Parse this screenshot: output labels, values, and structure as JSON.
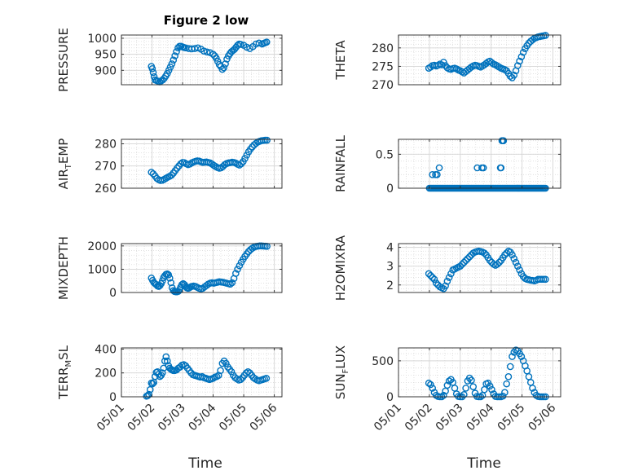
{
  "figure": {
    "title": "Figure 2 low",
    "marker_color": "#0072BD"
  },
  "chart_data": [
    {
      "type": "scatter",
      "id": "pressure",
      "ylabel": "PRESSURE",
      "ylim": [
        855,
        1010
      ],
      "yticks": [
        900,
        950,
        1000
      ],
      "xlim": [
        0,
        5.25
      ],
      "x_tick_labels_shown": false,
      "grid": true,
      "x": [
        0.98,
        1.01,
        1.04,
        1.07,
        1.1,
        1.15,
        1.2,
        1.25,
        1.3,
        1.35,
        1.4,
        1.45,
        1.5,
        1.55,
        1.6,
        1.65,
        1.7,
        1.75,
        1.8,
        1.85,
        1.9,
        1.95,
        2.0,
        2.05,
        2.1,
        2.2,
        2.3,
        2.4,
        2.5,
        2.6,
        2.7,
        2.8,
        2.9,
        3.0,
        3.05,
        3.1,
        3.15,
        3.2,
        3.25,
        3.3,
        3.35,
        3.4,
        3.45,
        3.5,
        3.55,
        3.6,
        3.65,
        3.7,
        3.75,
        3.8,
        3.85,
        3.9,
        4.0,
        4.1,
        4.2,
        4.3,
        4.4,
        4.5,
        4.6,
        4.65,
        4.7,
        4.75
      ],
      "y": [
        912,
        905,
        893,
        880,
        870,
        868,
        866,
        864,
        867,
        870,
        875,
        882,
        890,
        900,
        910,
        920,
        932,
        945,
        958,
        970,
        975,
        975,
        973,
        971,
        970,
        968,
        967,
        968,
        970,
        966,
        960,
        957,
        955,
        950,
        945,
        938,
        928,
        918,
        912,
        903,
        908,
        920,
        935,
        945,
        952,
        958,
        962,
        966,
        972,
        978,
        982,
        981,
        978,
        972,
        968,
        974,
        982,
        985,
        982,
        984,
        986,
        988
      ]
    },
    {
      "type": "scatter",
      "id": "theta",
      "ylabel": "THETA",
      "ylim": [
        270,
        283.5
      ],
      "yticks": [
        270,
        275,
        280
      ],
      "xlim": [
        0,
        5.25
      ],
      "x_tick_labels_shown": false,
      "grid": true,
      "x": [
        0.98,
        1.04,
        1.1,
        1.16,
        1.22,
        1.28,
        1.34,
        1.4,
        1.46,
        1.52,
        1.58,
        1.64,
        1.7,
        1.76,
        1.82,
        1.88,
        1.94,
        2.0,
        2.06,
        2.12,
        2.18,
        2.24,
        2.3,
        2.36,
        2.42,
        2.48,
        2.54,
        2.6,
        2.66,
        2.72,
        2.78,
        2.84,
        2.9,
        2.96,
        3.02,
        3.08,
        3.14,
        3.2,
        3.26,
        3.32,
        3.38,
        3.44,
        3.5,
        3.56,
        3.62,
        3.68,
        3.74,
        3.8,
        3.86,
        3.92,
        3.98,
        4.04,
        4.1,
        4.16,
        4.22,
        4.28,
        4.34,
        4.4,
        4.46,
        4.52,
        4.58,
        4.64,
        4.7,
        4.76
      ],
      "y": [
        274.5,
        274.8,
        275.2,
        275.3,
        275.1,
        275.3,
        275.6,
        275.4,
        276.1,
        275.2,
        274.6,
        274.3,
        274.2,
        274.4,
        274.5,
        274.3,
        274.0,
        273.8,
        273.5,
        273.2,
        273.6,
        274.0,
        274.4,
        274.8,
        275.1,
        275.3,
        275.2,
        275.0,
        274.8,
        275.1,
        275.4,
        275.8,
        276.2,
        276.4,
        276.0,
        275.6,
        275.4,
        275.1,
        274.8,
        274.5,
        274.3,
        274.1,
        273.8,
        273.1,
        272.3,
        271.9,
        272.6,
        273.8,
        275.2,
        276.4,
        277.6,
        278.8,
        279.8,
        280.6,
        281.3,
        281.8,
        282.2,
        282.6,
        282.8,
        283.0,
        283.1,
        283.2,
        283.3,
        283.4
      ]
    },
    {
      "type": "scatter",
      "id": "air_temp",
      "ylabel": "AIR",
      "ylabel_sub": "T",
      "ylabel_post": "EMP",
      "ylim": [
        260,
        282
      ],
      "yticks": [
        260,
        270,
        280
      ],
      "xlim": [
        0,
        5.25
      ],
      "x_tick_labels_shown": false,
      "grid": true,
      "x": [
        0.98,
        1.04,
        1.1,
        1.16,
        1.22,
        1.28,
        1.34,
        1.4,
        1.46,
        1.52,
        1.58,
        1.64,
        1.7,
        1.76,
        1.82,
        1.88,
        1.94,
        2.0,
        2.06,
        2.12,
        2.18,
        2.24,
        2.3,
        2.36,
        2.42,
        2.48,
        2.54,
        2.6,
        2.66,
        2.72,
        2.78,
        2.84,
        2.9,
        2.96,
        3.02,
        3.08,
        3.14,
        3.2,
        3.26,
        3.32,
        3.38,
        3.44,
        3.5,
        3.56,
        3.62,
        3.68,
        3.74,
        3.8,
        3.86,
        3.92,
        3.98,
        4.04,
        4.1,
        4.16,
        4.22,
        4.28,
        4.34,
        4.4,
        4.46,
        4.52,
        4.58,
        4.64,
        4.7,
        4.76
      ],
      "y": [
        267.2,
        266.5,
        265.5,
        264.4,
        263.8,
        263.5,
        263.6,
        264.0,
        264.5,
        265.0,
        265.4,
        265.9,
        266.8,
        267.9,
        269.0,
        270.0,
        271.0,
        271.6,
        271.5,
        271.0,
        270.6,
        270.9,
        271.4,
        271.8,
        272.1,
        272.3,
        272.2,
        271.9,
        271.6,
        271.7,
        271.8,
        271.6,
        271.4,
        270.9,
        270.3,
        269.8,
        269.3,
        269.0,
        269.2,
        269.8,
        270.6,
        271.1,
        271.4,
        271.5,
        271.7,
        271.6,
        271.3,
        270.8,
        270.4,
        271.0,
        272.0,
        273.4,
        274.9,
        276.4,
        277.6,
        278.6,
        279.5,
        280.2,
        280.8,
        281.1,
        281.4,
        281.5,
        281.6,
        281.6
      ]
    },
    {
      "type": "scatter",
      "id": "rainfall",
      "ylabel": "RAINFALL",
      "ylim": [
        0,
        0.72
      ],
      "yticks": [
        0,
        0.5
      ],
      "xlim": [
        0,
        5.25
      ],
      "x_tick_labels_shown": false,
      "grid": true,
      "x": [
        1.0,
        1.04,
        1.08,
        1.12,
        1.16,
        1.2,
        1.24,
        1.28,
        1.32,
        1.36,
        1.4,
        1.44,
        1.48,
        1.52,
        1.56,
        1.6,
        1.64,
        1.68,
        1.72,
        1.76,
        1.8,
        1.84,
        1.88,
        1.92,
        1.96,
        2.0,
        2.04,
        2.08,
        2.12,
        2.16,
        2.2,
        2.24,
        2.28,
        2.32,
        2.36,
        2.4,
        2.44,
        2.48,
        2.52,
        2.56,
        2.6,
        2.64,
        2.68,
        2.72,
        2.76,
        2.8,
        2.84,
        2.88,
        2.92,
        2.96,
        3.0,
        3.04,
        3.08,
        3.12,
        3.16,
        3.2,
        3.24,
        3.28,
        3.32,
        3.36,
        3.4,
        3.44,
        3.48,
        3.52,
        3.56,
        3.6,
        3.64,
        3.68,
        3.72,
        3.76,
        3.8,
        3.84,
        3.88,
        3.92,
        3.96,
        4.0,
        4.04,
        4.08,
        4.12,
        4.16,
        4.2,
        4.24,
        4.28,
        4.32,
        4.36,
        4.4,
        4.44,
        4.48,
        4.52,
        4.56,
        4.6,
        4.64,
        4.68,
        4.72,
        4.76,
        1.1,
        1.2,
        1.25,
        1.32,
        2.55,
        2.7,
        2.75,
        3.3,
        3.32,
        3.35,
        3.38,
        3.4
      ],
      "y": [
        0,
        0,
        0,
        0,
        0,
        0,
        0,
        0,
        0,
        0,
        0,
        0,
        0,
        0,
        0,
        0,
        0,
        0,
        0,
        0,
        0,
        0,
        0,
        0,
        0,
        0,
        0,
        0,
        0,
        0,
        0,
        0,
        0,
        0,
        0,
        0,
        0,
        0,
        0,
        0,
        0,
        0,
        0,
        0,
        0,
        0,
        0,
        0,
        0,
        0,
        0,
        0,
        0,
        0,
        0,
        0,
        0,
        0,
        0,
        0,
        0,
        0,
        0,
        0,
        0,
        0,
        0,
        0,
        0,
        0,
        0,
        0,
        0,
        0,
        0,
        0,
        0,
        0,
        0,
        0,
        0,
        0,
        0,
        0,
        0,
        0,
        0,
        0,
        0,
        0,
        0,
        0,
        0,
        0,
        0,
        0.2,
        0.2,
        0.2,
        0.3,
        0.3,
        0.3,
        0.3,
        0.3,
        0.3,
        0.7,
        0.7,
        0.7
      ]
    },
    {
      "type": "scatter",
      "id": "mixdepth",
      "ylabel": "MIXDEPTH",
      "ylim": [
        0,
        2100
      ],
      "yticks": [
        0,
        1000,
        2000
      ],
      "xlim": [
        0,
        5.25
      ],
      "x_tick_labels_shown": false,
      "grid": true,
      "x": [
        0.98,
        1.02,
        1.06,
        1.1,
        1.14,
        1.18,
        1.22,
        1.26,
        1.3,
        1.34,
        1.38,
        1.42,
        1.46,
        1.5,
        1.54,
        1.58,
        1.62,
        1.66,
        1.7,
        1.74,
        1.78,
        1.82,
        1.86,
        1.9,
        1.94,
        1.98,
        2.02,
        2.06,
        2.1,
        2.14,
        2.18,
        2.22,
        2.26,
        2.3,
        2.36,
        2.42,
        2.48,
        2.54,
        2.6,
        2.66,
        2.72,
        2.78,
        2.84,
        2.9,
        2.96,
        3.02,
        3.08,
        3.14,
        3.2,
        3.26,
        3.32,
        3.38,
        3.44,
        3.5,
        3.56,
        3.62,
        3.68,
        3.74,
        3.8,
        3.86,
        3.92,
        3.98,
        4.04,
        4.1,
        4.16,
        4.22,
        4.28,
        4.34,
        4.4,
        4.46,
        4.52,
        4.58,
        4.64,
        4.7,
        4.76
      ],
      "y": [
        620,
        520,
        430,
        380,
        340,
        280,
        260,
        300,
        380,
        500,
        640,
        720,
        780,
        800,
        760,
        620,
        420,
        200,
        80,
        40,
        30,
        30,
        50,
        120,
        240,
        340,
        380,
        340,
        260,
        200,
        180,
        200,
        240,
        260,
        280,
        260,
        220,
        180,
        160,
        180,
        240,
        300,
        360,
        400,
        420,
        400,
        420,
        440,
        460,
        450,
        440,
        420,
        400,
        380,
        360,
        420,
        600,
        820,
        1000,
        1150,
        1300,
        1430,
        1550,
        1660,
        1760,
        1840,
        1900,
        1950,
        1980,
        1990,
        2000,
        2000,
        1995,
        1990,
        1985
      ]
    },
    {
      "type": "scatter",
      "id": "h2omixra",
      "ylabel": "H2OMIXRA",
      "ylim": [
        1.6,
        4.2
      ],
      "yticks": [
        2,
        3,
        4
      ],
      "xlim": [
        0,
        5.25
      ],
      "x_tick_labels_shown": false,
      "grid": true,
      "x": [
        0.98,
        1.04,
        1.1,
        1.16,
        1.22,
        1.28,
        1.34,
        1.4,
        1.46,
        1.52,
        1.58,
        1.64,
        1.7,
        1.76,
        1.82,
        1.88,
        1.94,
        2.0,
        2.06,
        2.12,
        2.18,
        2.24,
        2.3,
        2.36,
        2.42,
        2.48,
        2.54,
        2.6,
        2.66,
        2.72,
        2.78,
        2.84,
        2.9,
        2.96,
        3.02,
        3.08,
        3.14,
        3.2,
        3.26,
        3.32,
        3.38,
        3.44,
        3.5,
        3.56,
        3.62,
        3.68,
        3.74,
        3.8,
        3.86,
        3.92,
        3.98,
        4.04,
        4.1,
        4.16,
        4.22,
        4.28,
        4.34,
        4.4,
        4.46,
        4.52,
        4.58,
        4.64,
        4.7,
        4.76
      ],
      "y": [
        2.6,
        2.5,
        2.4,
        2.3,
        2.1,
        2.0,
        1.9,
        1.85,
        1.8,
        1.95,
        2.2,
        2.4,
        2.6,
        2.8,
        2.85,
        2.9,
        2.95,
        3.0,
        3.1,
        3.2,
        3.3,
        3.4,
        3.5,
        3.6,
        3.7,
        3.75,
        3.78,
        3.8,
        3.78,
        3.75,
        3.7,
        3.6,
        3.45,
        3.3,
        3.2,
        3.1,
        3.05,
        3.1,
        3.2,
        3.3,
        3.45,
        3.6,
        3.7,
        3.8,
        3.75,
        3.6,
        3.4,
        3.2,
        3.0,
        2.8,
        2.6,
        2.45,
        2.35,
        2.3,
        2.28,
        2.25,
        2.24,
        2.22,
        2.25,
        2.3,
        2.3,
        2.3,
        2.3,
        2.3
      ]
    },
    {
      "type": "scatter",
      "id": "terr_msl",
      "ylabel": "TERR",
      "ylabel_sub": "M",
      "ylabel_post": "SL",
      "ylim": [
        0,
        410
      ],
      "yticks": [
        0,
        200,
        400
      ],
      "xlim": [
        0,
        5.25
      ],
      "x_tick_labels_shown": true,
      "grid": true,
      "x": [
        0.82,
        0.86,
        0.9,
        0.94,
        0.98,
        1.02,
        1.06,
        1.1,
        1.14,
        1.18,
        1.22,
        1.26,
        1.3,
        1.34,
        1.38,
        1.42,
        1.46,
        1.5,
        1.54,
        1.58,
        1.62,
        1.66,
        1.7,
        1.74,
        1.8,
        1.86,
        1.92,
        1.98,
        2.04,
        2.1,
        2.16,
        2.22,
        2.28,
        2.34,
        2.4,
        2.46,
        2.52,
        2.58,
        2.64,
        2.7,
        2.76,
        2.82,
        2.88,
        2.94,
        3.0,
        3.06,
        3.12,
        3.18,
        3.24,
        3.3,
        3.36,
        3.42,
        3.48,
        3.54,
        3.6,
        3.66,
        3.72,
        3.78,
        3.84,
        3.9,
        3.96,
        4.02,
        4.08,
        4.14,
        4.2,
        4.26,
        4.32,
        4.38,
        4.44,
        4.5,
        4.56,
        4.62,
        4.68,
        4.74
      ],
      "y": [
        5,
        10,
        20,
        60,
        115,
        110,
        120,
        170,
        205,
        210,
        190,
        170,
        180,
        200,
        240,
        300,
        335,
        300,
        260,
        240,
        230,
        225,
        220,
        220,
        225,
        240,
        250,
        265,
        270,
        260,
        240,
        220,
        200,
        185,
        180,
        175,
        170,
        165,
        170,
        160,
        155,
        150,
        145,
        150,
        155,
        165,
        170,
        180,
        220,
        280,
        300,
        280,
        250,
        230,
        210,
        180,
        160,
        150,
        140,
        145,
        160,
        180,
        200,
        210,
        200,
        180,
        160,
        150,
        140,
        135,
        140,
        145,
        150,
        155
      ]
    },
    {
      "type": "scatter",
      "id": "sun_flux",
      "ylabel": "SUN",
      "ylabel_sub": "F",
      "ylabel_post": "LUX",
      "ylim": [
        0,
        680
      ],
      "yticks": [
        0,
        500
      ],
      "xlim": [
        0,
        5.25
      ],
      "x_tick_labels_shown": true,
      "grid": true,
      "x": [
        0.98,
        1.04,
        1.1,
        1.16,
        1.22,
        1.28,
        1.34,
        1.4,
        1.46,
        1.52,
        1.58,
        1.64,
        1.7,
        1.76,
        1.82,
        1.88,
        1.94,
        2.0,
        2.06,
        2.12,
        2.18,
        2.24,
        2.3,
        2.36,
        2.42,
        2.48,
        2.54,
        2.6,
        2.66,
        2.72,
        2.78,
        2.84,
        2.9,
        2.96,
        3.02,
        3.08,
        3.14,
        3.2,
        3.26,
        3.32,
        3.38,
        3.44,
        3.5,
        3.56,
        3.62,
        3.68,
        3.74,
        3.8,
        3.86,
        3.92,
        3.98,
        4.04,
        4.1,
        4.16,
        4.22,
        4.28,
        4.34,
        4.4,
        4.46,
        4.52,
        4.58,
        4.64,
        4.7,
        4.76
      ],
      "y": [
        190,
        170,
        120,
        60,
        20,
        5,
        0,
        0,
        20,
        80,
        160,
        220,
        240,
        200,
        120,
        40,
        5,
        0,
        0,
        30,
        120,
        220,
        260,
        230,
        140,
        50,
        5,
        0,
        0,
        20,
        100,
        180,
        190,
        150,
        100,
        40,
        5,
        0,
        0,
        0,
        10,
        60,
        180,
        280,
        420,
        560,
        620,
        650,
        640,
        600,
        560,
        500,
        430,
        360,
        280,
        200,
        120,
        60,
        20,
        5,
        0,
        0,
        0,
        0
      ]
    }
  ],
  "x_axis": {
    "tick_labels": [
      "05/01",
      "05/02",
      "05/03",
      "05/04",
      "05/05",
      "05/06"
    ],
    "tick_positions": [
      0,
      1,
      2,
      3,
      4,
      5
    ],
    "label": "Time"
  }
}
